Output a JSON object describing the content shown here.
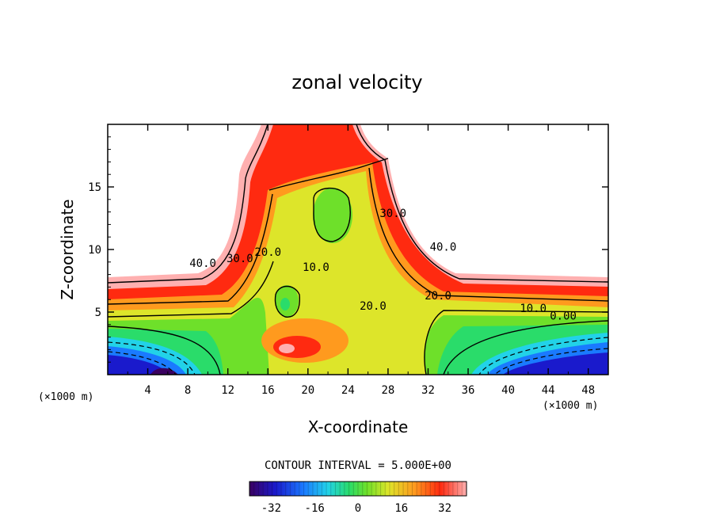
{
  "chart_data": {
    "type": "heatmap",
    "title": "zonal velocity",
    "xlabel": "X-coordinate",
    "ylabel": "Z-coordinate",
    "x_unit": "(×1000 m)",
    "z_unit": "(×1000 m)",
    "xlim": [
      0,
      50
    ],
    "ylim": [
      0,
      20
    ],
    "x_ticks": [
      "4",
      "8",
      "12",
      "16",
      "20",
      "24",
      "28",
      "32",
      "36",
      "40",
      "44",
      "48"
    ],
    "y_ticks": [
      "5",
      "10",
      "15"
    ],
    "contour_interval_text": "CONTOUR INTERVAL = 5.000E+00",
    "contour_labels": [
      {
        "text": "40.0",
        "x": 9.5,
        "z": 8.6
      },
      {
        "text": "30.0",
        "x": 13.2,
        "z": 9.0
      },
      {
        "text": "20.0",
        "x": 16.0,
        "z": 9.5
      },
      {
        "text": "10.0",
        "x": 20.8,
        "z": 8.3
      },
      {
        "text": "20.0",
        "x": 26.5,
        "z": 5.2
      },
      {
        "text": "30.0",
        "x": 28.5,
        "z": 12.6
      },
      {
        "text": "40.0",
        "x": 33.5,
        "z": 9.9
      },
      {
        "text": "20.0",
        "x": 33.0,
        "z": 6.0
      },
      {
        "text": "10.0",
        "x": 42.5,
        "z": 5.0
      },
      {
        "text": "0.00",
        "x": 45.5,
        "z": 4.4
      }
    ],
    "colorbar": {
      "range": [
        -40,
        40
      ],
      "ticks": [
        "-32",
        "-16",
        "0",
        "16",
        "32"
      ],
      "tick_values": [
        -32,
        -16,
        0,
        16,
        32
      ]
    }
  }
}
